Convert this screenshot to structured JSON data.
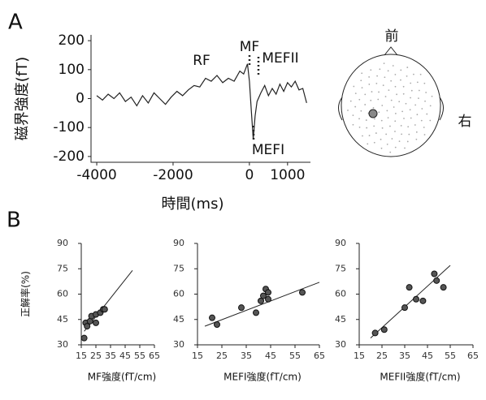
{
  "panels": [
    "A",
    "B"
  ],
  "diagram": {
    "labels": [
      "前",
      "右"
    ]
  },
  "chart_data": [
    {
      "type": "line",
      "ylabel": "磁界強度(fT)",
      "xlabel": "時間(ms)",
      "annotations": [
        "RF",
        "MF",
        "MEFII",
        "MEFI"
      ],
      "color": "#222222",
      "x": [
        -4000,
        -3850,
        -3700,
        -3550,
        -3400,
        -3250,
        -3100,
        -2950,
        -2800,
        -2650,
        -2500,
        -2350,
        -2200,
        -2050,
        -1900,
        -1750,
        -1600,
        -1450,
        -1300,
        -1150,
        -1000,
        -850,
        -700,
        -550,
        -400,
        -250,
        -150,
        -50,
        0,
        50,
        100,
        150,
        200,
        300,
        400,
        500,
        600,
        700,
        800,
        900,
        1000,
        1100,
        1200,
        1300,
        1400,
        1500
      ],
      "values": [
        10,
        -5,
        15,
        0,
        20,
        -10,
        5,
        -25,
        10,
        -15,
        20,
        0,
        -20,
        5,
        25,
        10,
        30,
        45,
        40,
        70,
        60,
        80,
        55,
        70,
        60,
        95,
        85,
        120,
        60,
        -40,
        -140,
        -60,
        -10,
        20,
        45,
        10,
        35,
        15,
        50,
        25,
        55,
        40,
        60,
        30,
        35,
        -15
      ],
      "xlim": [
        -4150,
        1600
      ],
      "ylim": [
        -220,
        220
      ],
      "xticks": [
        -4000,
        -2000,
        0,
        1000
      ],
      "yticks": [
        -200,
        -100,
        0,
        100,
        200
      ]
    },
    {
      "type": "scatter",
      "ylabel": "正解率(%)",
      "xlabel": "MF強度(fT/cm)",
      "color": "#555555",
      "points": {
        "x": [
          17,
          18,
          19,
          21,
          22,
          25,
          25,
          28,
          30,
          31
        ],
        "y": [
          34,
          43,
          41,
          44,
          47,
          48,
          43,
          49,
          51,
          51
        ]
      },
      "fit_line": {
        "x": [
          17,
          50
        ],
        "y": [
          38,
          74
        ]
      },
      "xlim": [
        15,
        65
      ],
      "ylim": [
        30,
        90
      ],
      "xticks": [
        15,
        25,
        35,
        45,
        55,
        65
      ],
      "yticks": [
        30,
        45,
        60,
        75,
        90
      ]
    },
    {
      "type": "scatter",
      "xlabel": "MEFI強度(fT/cm)",
      "color": "#555555",
      "points": {
        "x": [
          21,
          23,
          33,
          39,
          41,
          42,
          43,
          44,
          44,
          58
        ],
        "y": [
          46,
          42,
          52,
          49,
          56,
          59,
          63,
          61,
          57,
          61
        ]
      },
      "fit_line": {
        "x": [
          18,
          65
        ],
        "y": [
          41,
          67
        ]
      },
      "xlim": [
        15,
        65
      ],
      "ylim": [
        30,
        90
      ],
      "xticks": [
        15,
        25,
        35,
        45,
        55,
        65
      ],
      "yticks": [
        30,
        45,
        60,
        75,
        90
      ]
    },
    {
      "type": "scatter",
      "xlabel": "MEFII強度(fT/cm)",
      "color": "#555555",
      "points": {
        "x": [
          22,
          26,
          35,
          37,
          40,
          43,
          48,
          49,
          52
        ],
        "y": [
          37,
          39,
          52,
          64,
          57,
          56,
          72,
          68,
          64
        ]
      },
      "fit_line": {
        "x": [
          20,
          55
        ],
        "y": [
          34,
          77
        ]
      },
      "xlim": [
        15,
        65
      ],
      "ylim": [
        30,
        90
      ],
      "xticks": [
        15,
        25,
        35,
        45,
        55,
        65
      ],
      "yticks": [
        30,
        45,
        60,
        75,
        90
      ]
    }
  ]
}
